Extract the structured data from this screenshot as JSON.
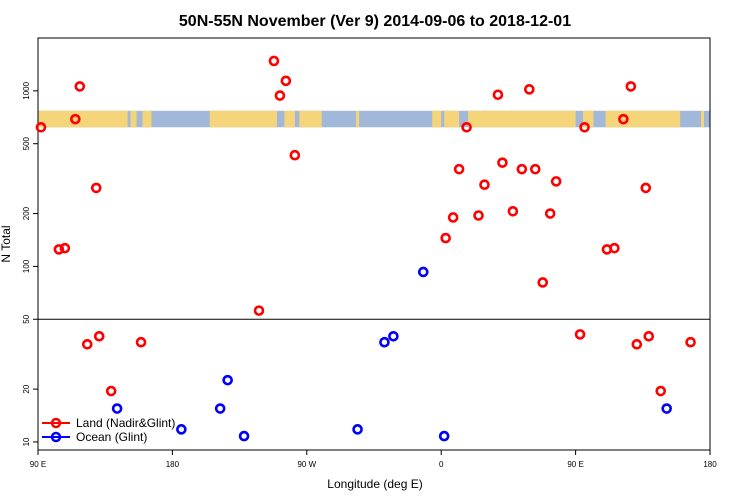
{
  "chart_data": {
    "type": "scatter",
    "title": "50N-55N November (Ver 9)   2014-09-06 to 2018-12-01",
    "xlabel": "Longitude (deg E)",
    "ylabel": "N Total",
    "xlim": [
      90,
      540
    ],
    "ylog": true,
    "ylim": [
      9,
      2000
    ],
    "x_ticks": [
      {
        "value": 90,
        "label": "90 E"
      },
      {
        "value": 180,
        "label": "180"
      },
      {
        "value": 270,
        "label": "90 W"
      },
      {
        "value": 360,
        "label": "0"
      },
      {
        "value": 450,
        "label": "90 E"
      },
      {
        "value": 540,
        "label": "180"
      }
    ],
    "y_ticks": [
      {
        "value": 10,
        "label": "10"
      },
      {
        "value": 20,
        "label": "20"
      },
      {
        "value": 50,
        "label": "50"
      },
      {
        "value": 100,
        "label": "100"
      },
      {
        "value": 200,
        "label": "200"
      },
      {
        "value": 500,
        "label": "500"
      },
      {
        "value": 1000,
        "label": "1000"
      }
    ],
    "reference_line_y": 50,
    "land_mask_band": {
      "y_range": [
        620,
        770
      ],
      "land_color": "#f5d47a",
      "ocean_color": "#a2b8d8"
    },
    "series": [
      {
        "name": "Land (Nadir&Glint)",
        "color": "#ff0000",
        "points": [
          [
            92,
            620
          ],
          [
            104,
            125
          ],
          [
            108,
            127
          ],
          [
            115,
            690
          ],
          [
            118,
            1060
          ],
          [
            123,
            36
          ],
          [
            129,
            280
          ],
          [
            131,
            40
          ],
          [
            139,
            19.5
          ],
          [
            159,
            37
          ],
          [
            238,
            56
          ],
          [
            248,
            1480
          ],
          [
            252,
            940
          ],
          [
            256,
            1140
          ],
          [
            262,
            430
          ],
          [
            363,
            145
          ],
          [
            368,
            190
          ],
          [
            372,
            358
          ],
          [
            377,
            620
          ],
          [
            385,
            195
          ],
          [
            389,
            292
          ],
          [
            398,
            950
          ],
          [
            401,
            390
          ],
          [
            408,
            206
          ],
          [
            414,
            358
          ],
          [
            419,
            1020
          ],
          [
            423,
            358
          ],
          [
            428,
            81
          ],
          [
            433,
            200
          ],
          [
            437,
            305
          ],
          [
            453,
            41
          ],
          [
            456,
            620
          ],
          [
            471,
            125
          ],
          [
            476,
            127
          ],
          [
            482,
            690
          ],
          [
            487,
            1060
          ],
          [
            491,
            36
          ],
          [
            497,
            280
          ],
          [
            499,
            40
          ],
          [
            507,
            19.5
          ],
          [
            527,
            37
          ]
        ]
      },
      {
        "name": "Ocean (Glint)",
        "color": "#0000ff",
        "points": [
          [
            143,
            15.5
          ],
          [
            186,
            11.8
          ],
          [
            212,
            15.5
          ],
          [
            217,
            22.5
          ],
          [
            228,
            10.8
          ],
          [
            304,
            11.8
          ],
          [
            322,
            37
          ],
          [
            328,
            40
          ],
          [
            348,
            93
          ],
          [
            362,
            10.8
          ],
          [
            511,
            15.5
          ]
        ]
      }
    ],
    "legend_position": "bottom-left"
  }
}
